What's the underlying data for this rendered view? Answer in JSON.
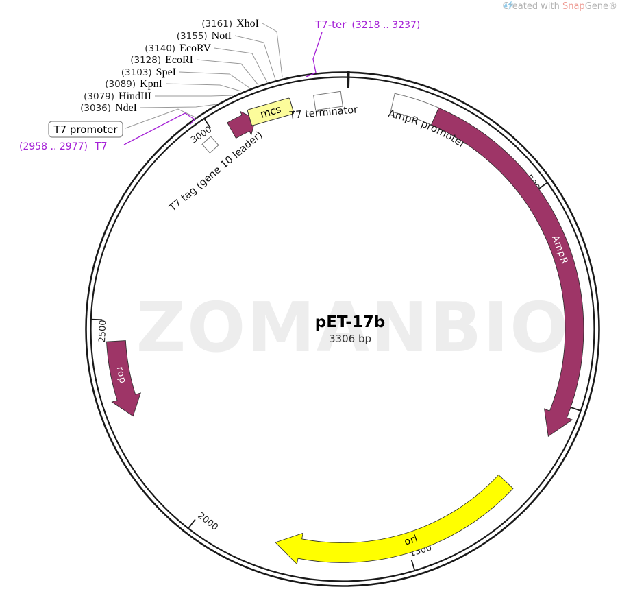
{
  "watermark": "ZOMANBIO",
  "credit": {
    "prefix": "Created with ",
    "brand_red": "Snap",
    "brand_gray": "Gene®"
  },
  "plasmid": {
    "name": "pET-17b",
    "size_label": "3306 bp",
    "length_bp": 3306,
    "ticks": [
      500,
      1000,
      1500,
      2000,
      2500,
      3000
    ]
  },
  "features": {
    "t7_promoter_label": "T7 promoter",
    "t7_primer": {
      "range": "(2958 .. 2977)",
      "name": "T7"
    },
    "t7_ter_primer": {
      "name": "T7-ter",
      "range": "(3218 .. 3237)"
    },
    "t7_tag": "T7 tag (gene 10 leader)",
    "mcs": "mcs",
    "t7_terminator": "T7 terminator",
    "ampr_promoter": "AmpR promoter",
    "ampr": "AmpR",
    "ori": "ori",
    "rop": "rop"
  },
  "restriction_sites": [
    {
      "pos": "(3161)",
      "name": "XhoI"
    },
    {
      "pos": "(3155)",
      "name": "NotI"
    },
    {
      "pos": "(3140)",
      "name": "EcoRV"
    },
    {
      "pos": "(3128)",
      "name": "EcoRI"
    },
    {
      "pos": "(3103)",
      "name": "SpeI"
    },
    {
      "pos": "(3089)",
      "name": "KpnI"
    },
    {
      "pos": "(3079)",
      "name": "HindIII"
    },
    {
      "pos": "(3036)",
      "name": "NdeI"
    }
  ],
  "colors": {
    "feature_maroon": "#9E3567",
    "ori_yellow": "#FFFF00",
    "mcs_yellow": "#FCFC9B",
    "primer_purple": "#A521D6",
    "leader_gray": "#999999",
    "watermark_gray": "#EDEDED",
    "credit_gray": "#B3B3B3",
    "credit_red": "#EE9C94",
    "credit_blue": "#92CBEA"
  }
}
